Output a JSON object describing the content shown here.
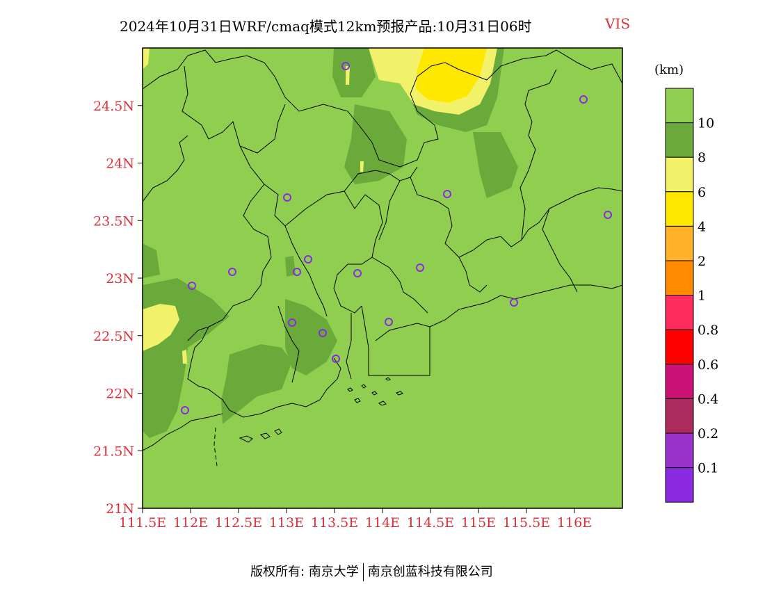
{
  "title": {
    "main": "2024年10月31日WRF/cmaq模式12km预报产品:10月31日06时",
    "variable": "VIS"
  },
  "colors": {
    "base_fill": "#8fce4f",
    "tick_label": "#e0303a",
    "title_variable": "#e0303a",
    "station_marker": "#8a2be2"
  },
  "axes": {
    "lat_ticks": [
      "24.5N",
      "24N",
      "23.5N",
      "23N",
      "22.5N",
      "22N",
      "21.5N",
      "21N"
    ],
    "lon_ticks": [
      "111.5E",
      "112E",
      "112.5E",
      "113E",
      "113.5E",
      "114E",
      "114.5E",
      "115E",
      "115.5E",
      "116E"
    ],
    "lat_range": [
      21,
      25
    ],
    "lon_range": [
      111.5,
      116.5
    ]
  },
  "legend": {
    "unit": "(km)",
    "levels": [
      {
        "label": "",
        "color": "#8fce4f"
      },
      {
        "label": "10",
        "color": "#6aaa3a"
      },
      {
        "label": "8",
        "color": "#f2f26a"
      },
      {
        "label": "6",
        "color": "#ffe800"
      },
      {
        "label": "4",
        "color": "#ffb22a"
      },
      {
        "label": "2",
        "color": "#ff8a00"
      },
      {
        "label": "1",
        "color": "#ff2d5c"
      },
      {
        "label": "0.8",
        "color": "#ff0000"
      },
      {
        "label": "0.6",
        "color": "#cc1177"
      },
      {
        "label": "0.4",
        "color": "#aa2b5c"
      },
      {
        "label": "0.2",
        "color": "#9933cc"
      },
      {
        "label": "0.1",
        "color": "#8a2be2"
      }
    ]
  },
  "footer": {
    "left": "版权所有: 南京大学",
    "right": "南京创蓝科技有限公司"
  }
}
